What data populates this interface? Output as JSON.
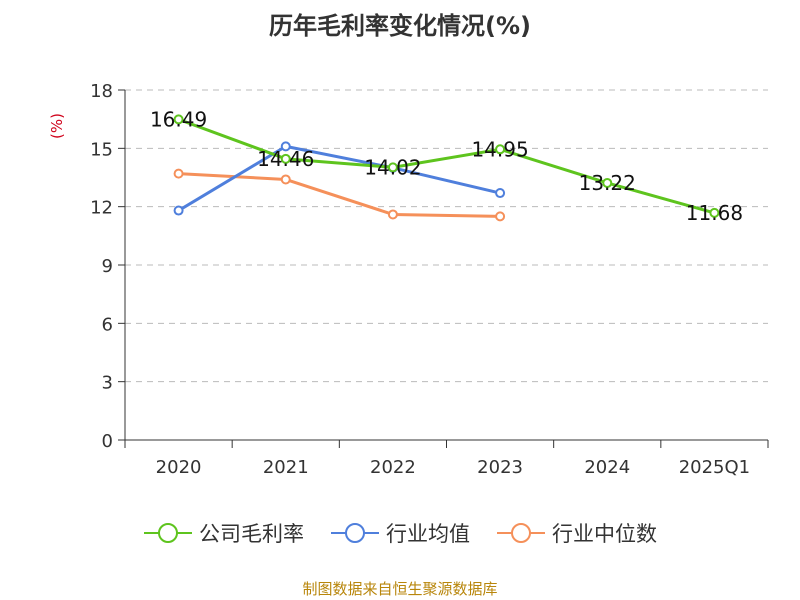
{
  "chart_data": {
    "type": "line",
    "title": "历年毛利率变化情况(%)",
    "ylabel": "(%)",
    "categories": [
      "2020",
      "2021",
      "2022",
      "2023",
      "2024",
      "2025Q1"
    ],
    "ylim": [
      0,
      18
    ],
    "yticks": [
      0,
      3,
      6,
      9,
      12,
      15,
      18
    ],
    "grid": true,
    "legend_position": "bottom",
    "series": [
      {
        "name": "公司毛利率",
        "color": "#5ec41e",
        "values": [
          16.49,
          14.46,
          14.02,
          14.95,
          13.22,
          11.68
        ],
        "labels": [
          "16.49",
          "14.46",
          "14.02",
          "14.95",
          "13.22",
          "11.68"
        ]
      },
      {
        "name": "行业均值",
        "color": "#4f7fdc",
        "values": [
          11.8,
          15.1,
          14.0,
          12.7,
          null,
          null
        ]
      },
      {
        "name": "行业中位数",
        "color": "#f5905a",
        "values": [
          13.7,
          13.4,
          11.6,
          11.5,
          null,
          null
        ]
      }
    ]
  },
  "footer": "制图数据来自恒生聚源数据库"
}
